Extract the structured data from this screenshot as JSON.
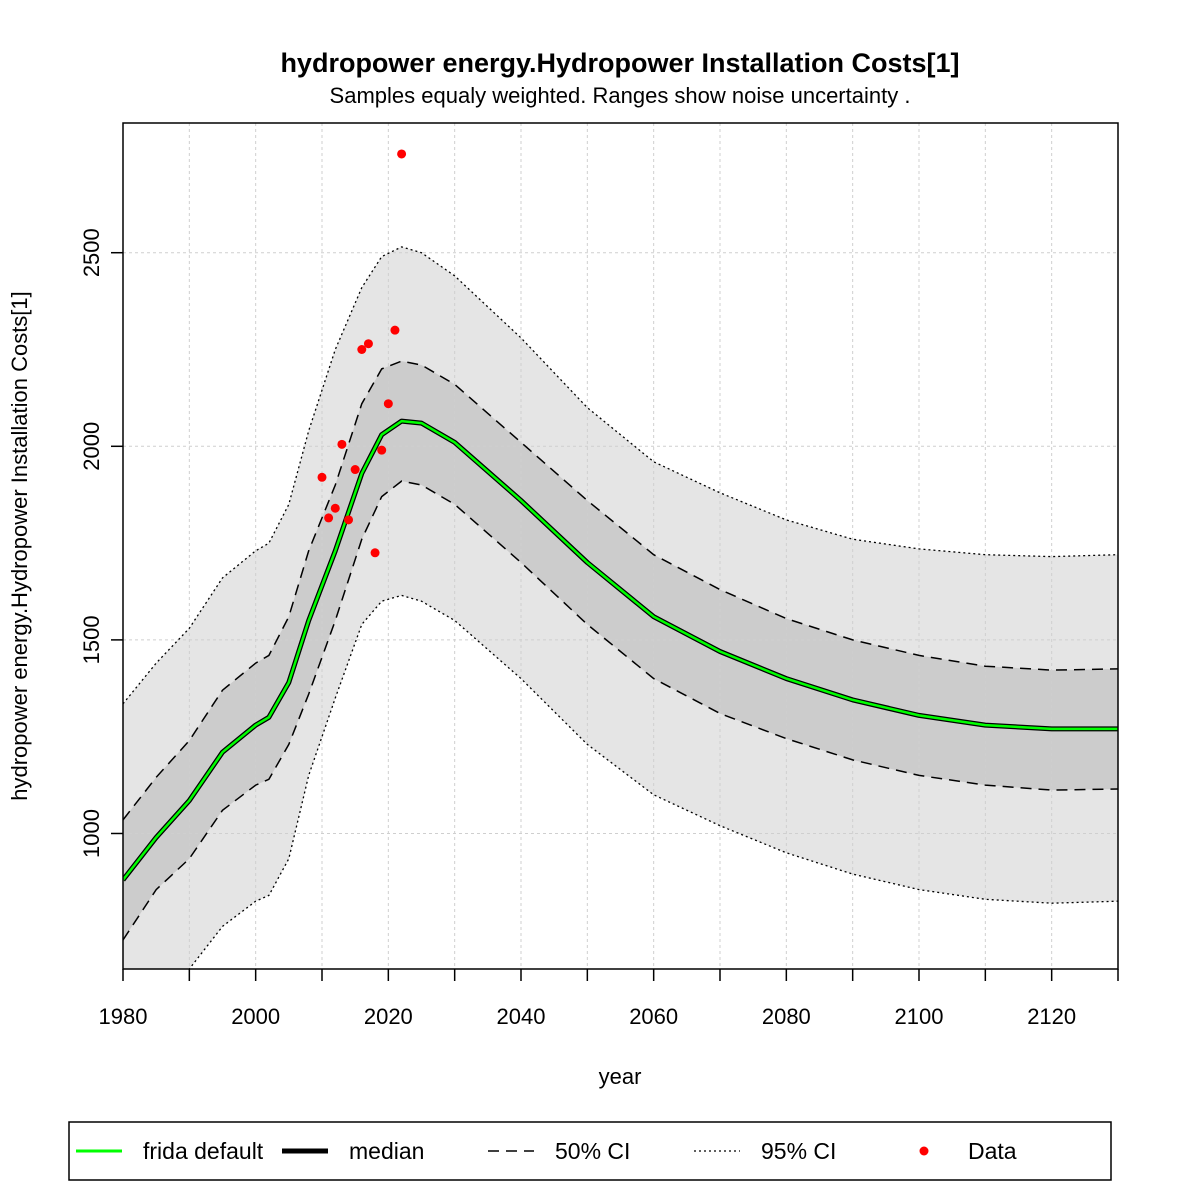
{
  "chart_data": {
    "type": "line",
    "title": "hydropower energy.Hydropower Installation Costs[1]",
    "subtitle": "Samples equaly weighted. Ranges show  noise uncertainty .",
    "xlabel": "year",
    "ylabel": "hydropower energy.Hydropower Installation Costs[1]",
    "xlim": [
      1980,
      2130
    ],
    "ylim": [
      650,
      2835
    ],
    "x_ticks": [
      1980,
      2000,
      2020,
      2040,
      2060,
      2080,
      2100,
      2120
    ],
    "y_ticks": [
      1000,
      1500,
      2000,
      2500
    ],
    "grid": true,
    "legend_position": "bottom",
    "x": [
      1980,
      1985,
      1990,
      1995,
      2000,
      2002,
      2005,
      2008,
      2012,
      2016,
      2019,
      2022,
      2025,
      2030,
      2040,
      2050,
      2060,
      2070,
      2080,
      2090,
      2100,
      2110,
      2120,
      2130
    ],
    "series": [
      {
        "name": "frida default",
        "color": "#00ff00",
        "style": "solid",
        "values": [
          880,
          990,
          1085,
          1210,
          1280,
          1300,
          1390,
          1550,
          1730,
          1930,
          2030,
          2065,
          2060,
          2010,
          1860,
          1700,
          1560,
          1470,
          1400,
          1345,
          1305,
          1280,
          1270,
          1270
        ]
      },
      {
        "name": "median",
        "color": "#000000",
        "style": "solid",
        "values": [
          880,
          990,
          1085,
          1210,
          1280,
          1300,
          1390,
          1550,
          1730,
          1930,
          2030,
          2065,
          2060,
          2010,
          1860,
          1700,
          1560,
          1470,
          1400,
          1345,
          1305,
          1280,
          1270,
          1270
        ]
      },
      {
        "name": "50% CI",
        "color": "#000000",
        "style": "dashed",
        "band": {
          "upper": [
            1035,
            1145,
            1240,
            1370,
            1440,
            1460,
            1560,
            1730,
            1900,
            2110,
            2200,
            2220,
            2210,
            2160,
            2010,
            1860,
            1720,
            1630,
            1555,
            1500,
            1460,
            1432,
            1422,
            1425
          ],
          "lower": [
            725,
            855,
            935,
            1060,
            1125,
            1140,
            1230,
            1360,
            1550,
            1760,
            1870,
            1910,
            1900,
            1850,
            1700,
            1540,
            1400,
            1310,
            1245,
            1190,
            1150,
            1125,
            1112,
            1115
          ]
        }
      },
      {
        "name": "95% CI",
        "color": "#000000",
        "style": "dotted",
        "band": {
          "upper": [
            1335,
            1440,
            1530,
            1660,
            1730,
            1750,
            1850,
            2040,
            2250,
            2410,
            2490,
            2515,
            2500,
            2440,
            2280,
            2100,
            1960,
            1880,
            1810,
            1760,
            1735,
            1720,
            1715,
            1720
          ],
          "lower": [
            420,
            540,
            650,
            760,
            825,
            840,
            935,
            1150,
            1350,
            1540,
            1600,
            1615,
            1600,
            1550,
            1400,
            1230,
            1100,
            1020,
            950,
            895,
            855,
            830,
            820,
            825
          ]
        }
      }
    ],
    "data_points": {
      "name": "Data",
      "color": "#ff0000",
      "x": [
        2010,
        2011,
        2012,
        2013,
        2014,
        2015,
        2016,
        2017,
        2018,
        2019,
        2020,
        2021,
        2022
      ],
      "y": [
        1920,
        1815,
        1840,
        2005,
        1810,
        1940,
        2250,
        2265,
        1725,
        1990,
        2110,
        2300,
        2755
      ]
    },
    "legend": [
      "frida default",
      "median",
      "50% CI",
      "95% CI",
      "Data"
    ],
    "colors": {
      "outer_band": "#e5e5e5",
      "inner_band": "#cccccc",
      "grid": "#cfcfcf"
    }
  }
}
